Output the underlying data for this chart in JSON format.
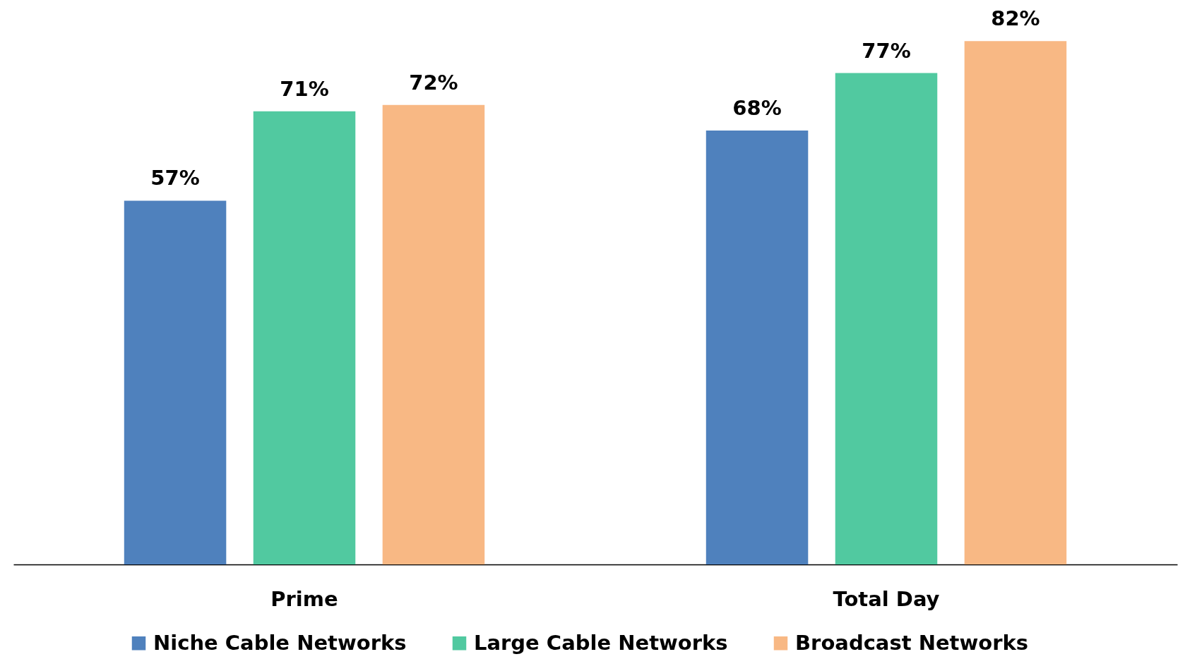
{
  "chart_data": {
    "type": "bar",
    "categories": [
      "Prime",
      "Total Day"
    ],
    "series": [
      {
        "name": "Niche Cable Networks",
        "color": "#4f81bd",
        "values": [
          57,
          68
        ],
        "value_labels": [
          "57%",
          "68%"
        ]
      },
      {
        "name": "Large Cable Networks",
        "color": "#51c9a0",
        "values": [
          71,
          77
        ],
        "value_labels": [
          "71%",
          "77%"
        ]
      },
      {
        "name": "Broadcast Networks",
        "color": "#f8b884",
        "values": [
          72,
          82
        ],
        "value_labels": [
          "72%",
          "82%"
        ]
      }
    ],
    "ylim": [
      0,
      88
    ],
    "tick_labels": "x",
    "grid": false,
    "legend": "bottom"
  }
}
